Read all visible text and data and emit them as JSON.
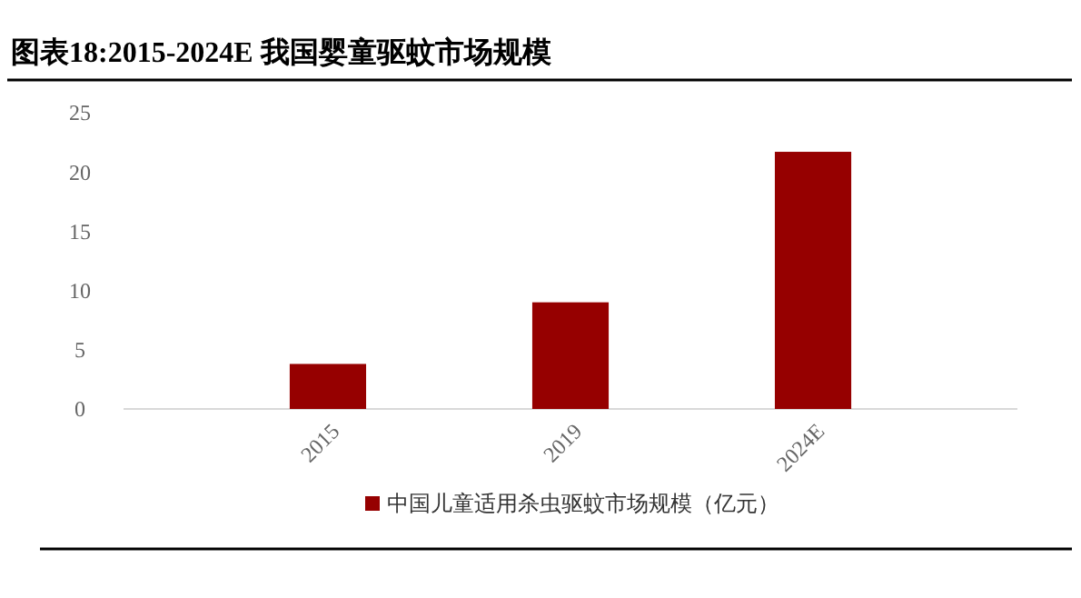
{
  "chart_data": {
    "type": "bar",
    "title": "图表18:2015-2024E 我国婴童驱蚊市场规模",
    "categories": [
      "2015",
      "2019",
      "2024E"
    ],
    "series": [
      {
        "name": "中国儿童适用杀虫驱蚊市场规模（亿元）",
        "color": "#960000",
        "values": [
          3.8,
          9.0,
          21.7
        ]
      }
    ],
    "ylim": [
      0,
      25
    ],
    "yticks": [
      0,
      5,
      10,
      15,
      20,
      25
    ],
    "grid": false,
    "legend": "bottom"
  }
}
